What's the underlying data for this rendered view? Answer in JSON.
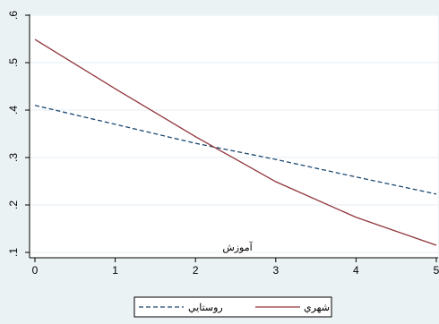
{
  "chart_data": {
    "type": "line",
    "title": "",
    "xlabel": "آموزش",
    "ylabel": "",
    "xlim": [
      0,
      5
    ],
    "ylim": [
      0.1,
      0.6
    ],
    "x_ticks": [
      "0",
      "1",
      "2",
      "3",
      "4",
      "5"
    ],
    "y_ticks": [
      ".1",
      ".2",
      ".3",
      ".4",
      ".5",
      ".6"
    ],
    "grid": "horizontal",
    "legend_position": "bottom",
    "series": [
      {
        "name": "روستايي",
        "style": "dashed",
        "color": "#1a476f",
        "x": [
          0,
          1,
          2,
          3,
          4,
          5
        ],
        "y": [
          0.41,
          0.37,
          0.33,
          0.296,
          0.259,
          0.223
        ]
      },
      {
        "name": "شهري",
        "style": "solid",
        "color": "#90353b",
        "x": [
          0,
          1,
          2,
          3,
          4,
          5
        ],
        "y": [
          0.549,
          0.445,
          0.344,
          0.249,
          0.174,
          0.115
        ]
      }
    ]
  }
}
